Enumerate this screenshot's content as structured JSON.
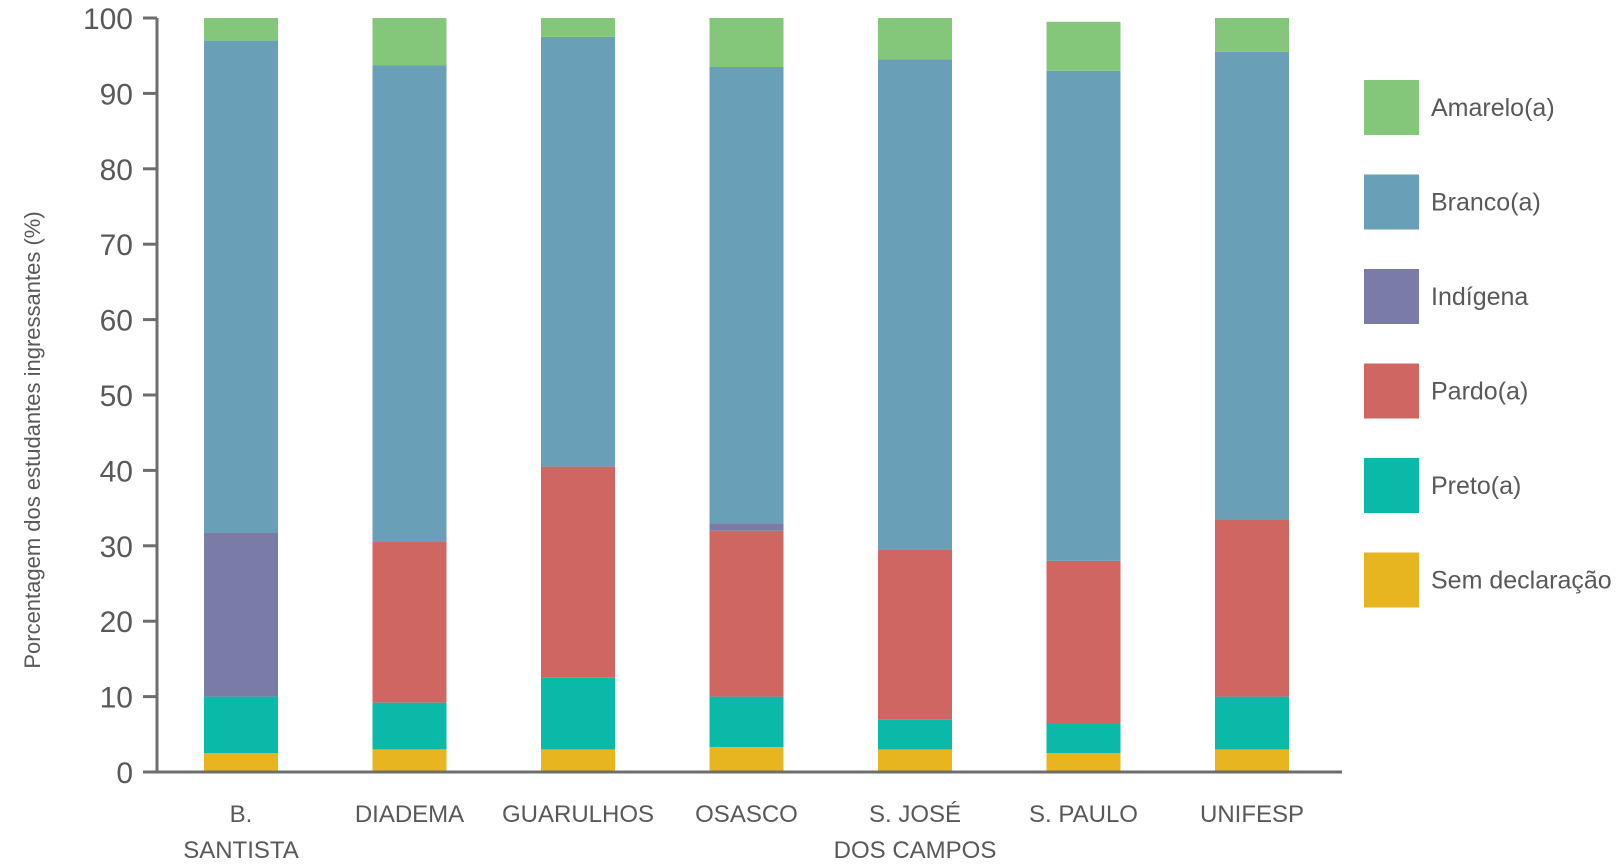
{
  "chart_data": {
    "type": "bar",
    "stacked": true,
    "title": "",
    "xlabel": "",
    "ylabel": "Porcentagem dos estudantes ingressantes (%)",
    "ylim": [
      0,
      100
    ],
    "yticks": [
      0,
      10,
      20,
      30,
      40,
      50,
      60,
      70,
      80,
      90,
      100
    ],
    "grid": false,
    "legend_position": "right",
    "categories": [
      [
        "B.",
        "SANTISTA"
      ],
      [
        "DIADEMA"
      ],
      [
        "GUARULHOS"
      ],
      [
        "OSASCO"
      ],
      [
        "S. JOSÉ",
        "DOS CAMPOS"
      ],
      [
        "S. PAULO"
      ],
      [
        "UNIFESP"
      ]
    ],
    "series": [
      {
        "name": "Sem declaração",
        "color": "#e6b520",
        "values": [
          2.5,
          3.0,
          3.0,
          3.3,
          3.0,
          2.5,
          3.0
        ]
      },
      {
        "name": "Preto(a)",
        "color": "#0bb9a8",
        "values": [
          7.5,
          6.2,
          9.5,
          6.7,
          4.0,
          4.0,
          7.0
        ]
      },
      {
        "name": "Pardo(a)",
        "color": "#d06661",
        "values": [
          0,
          21.3,
          28.0,
          22.0,
          22.5,
          21.5,
          23.5
        ]
      },
      {
        "name": "Indígena",
        "color": "#7b7ba8",
        "values": [
          21.7,
          0,
          0,
          1.0,
          0,
          0,
          0
        ]
      },
      {
        "name": "Branco(a)",
        "color": "#6a9fb8",
        "values": [
          65.3,
          63.2,
          57.0,
          60.5,
          65.0,
          65.0,
          62.0
        ]
      },
      {
        "name": "Amarelo(a)",
        "color": "#84c77a",
        "values": [
          3.0,
          6.3,
          2.5,
          6.5,
          5.5,
          6.5,
          4.5
        ]
      }
    ]
  }
}
